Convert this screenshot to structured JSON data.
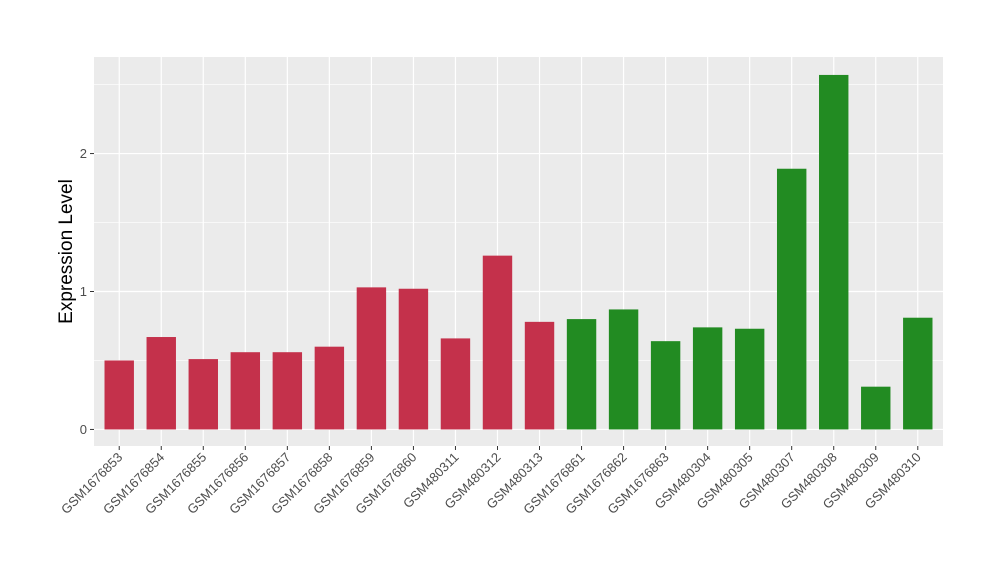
{
  "chart_data": {
    "type": "bar",
    "xlabel": "",
    "ylabel": "Expression Level",
    "ylim": [
      -0.12,
      2.7
    ],
    "yticks": [
      0,
      1,
      2
    ],
    "ytick_labels": [
      "0",
      "1",
      "2"
    ],
    "grid": true,
    "categories": [
      "GSM1676853",
      "GSM1676854",
      "GSM1676855",
      "GSM1676856",
      "GSM1676857",
      "GSM1676858",
      "GSM1676859",
      "GSM1676860",
      "GSM480311",
      "GSM480312",
      "GSM480313",
      "GSM1676861",
      "GSM1676862",
      "GSM1676863",
      "GSM480304",
      "GSM480305",
      "GSM480307",
      "GSM480308",
      "GSM480309",
      "GSM480310"
    ],
    "values": [
      0.5,
      0.67,
      0.51,
      0.56,
      0.56,
      0.6,
      1.03,
      1.02,
      0.66,
      1.26,
      0.78,
      0.8,
      0.87,
      0.64,
      0.74,
      0.73,
      1.89,
      2.57,
      0.31,
      0.81
    ],
    "groups": [
      "red",
      "red",
      "red",
      "red",
      "red",
      "red",
      "red",
      "red",
      "red",
      "red",
      "red",
      "green",
      "green",
      "green",
      "green",
      "green",
      "green",
      "green",
      "green",
      "green"
    ],
    "colors": {
      "red": "#c4314b",
      "green": "#228b22"
    },
    "panel_background": "#ebebeb",
    "gridline_color": "#ffffff"
  }
}
